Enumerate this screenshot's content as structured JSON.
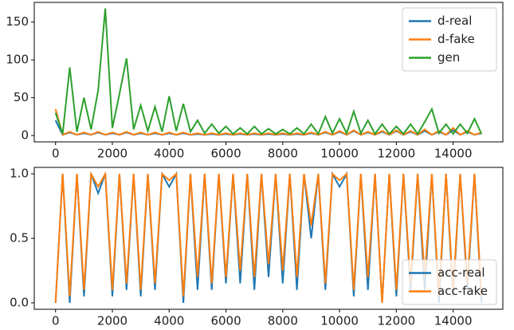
{
  "chart_data": [
    {
      "type": "line",
      "x": [
        0,
        250,
        500,
        750,
        1000,
        1250,
        1500,
        1750,
        2000,
        2250,
        2500,
        2750,
        3000,
        3250,
        3500,
        3750,
        4000,
        4250,
        4500,
        4750,
        5000,
        5250,
        5500,
        5750,
        6000,
        6250,
        6500,
        6750,
        7000,
        7250,
        7500,
        7750,
        8000,
        8250,
        8500,
        8750,
        9000,
        9250,
        9500,
        9750,
        10000,
        10250,
        10500,
        10750,
        11000,
        11250,
        11500,
        11750,
        12000,
        12250,
        12500,
        12750,
        13000,
        13250,
        13500,
        13750,
        14000,
        14250,
        14500,
        14750,
        15000
      ],
      "series": [
        {
          "name": "d-real",
          "color": "#1f77b4",
          "values": [
            20,
            1,
            4,
            1,
            3,
            1,
            4,
            1,
            3,
            1,
            4,
            1,
            3,
            1,
            3,
            1,
            3,
            1,
            3,
            1,
            2,
            1,
            2,
            1,
            2,
            1,
            2,
            1,
            2,
            1,
            2,
            1,
            2,
            1,
            2,
            1,
            3,
            1,
            4,
            1,
            5,
            1,
            6,
            1,
            4,
            1,
            5,
            1,
            6,
            1,
            5,
            1,
            6,
            1,
            5,
            1,
            7,
            1,
            5,
            1,
            3
          ]
        },
        {
          "name": "d-fake",
          "color": "#ff7f0e",
          "values": [
            35,
            1,
            5,
            1,
            4,
            1,
            5,
            1,
            4,
            1,
            5,
            1,
            4,
            1,
            4,
            1,
            4,
            1,
            4,
            1,
            3,
            1,
            3,
            1,
            3,
            1,
            3,
            1,
            3,
            1,
            3,
            1,
            3,
            1,
            3,
            1,
            4,
            1,
            5,
            1,
            6,
            1,
            7,
            1,
            5,
            1,
            6,
            1,
            7,
            1,
            6,
            1,
            8,
            1,
            6,
            1,
            10,
            1,
            6,
            1,
            4
          ]
        },
        {
          "name": "gen",
          "color": "#2ca02c",
          "values": [
            30,
            2,
            90,
            5,
            50,
            8,
            60,
            168,
            10,
            55,
            102,
            8,
            40,
            6,
            38,
            5,
            52,
            6,
            42,
            5,
            20,
            3,
            15,
            3,
            12,
            2,
            10,
            2,
            12,
            2,
            9,
            2,
            8,
            2,
            10,
            2,
            15,
            2,
            25,
            3,
            22,
            3,
            32,
            3,
            20,
            2,
            15,
            2,
            12,
            2,
            15,
            2,
            18,
            35,
            3,
            15,
            2,
            15,
            3,
            22,
            2
          ]
        }
      ],
      "xlim": [
        -750,
        15750
      ],
      "xticks": [
        0,
        2000,
        4000,
        6000,
        8000,
        10000,
        12000,
        14000
      ],
      "ylim": [
        -8.4,
        176
      ],
      "yticks": [
        0,
        50,
        100,
        150
      ],
      "legend": "upper right"
    },
    {
      "type": "line",
      "x": [
        0,
        250,
        500,
        750,
        1000,
        1250,
        1500,
        1750,
        2000,
        2250,
        2500,
        2750,
        3000,
        3250,
        3500,
        3750,
        4000,
        4250,
        4500,
        4750,
        5000,
        5250,
        5500,
        5750,
        6000,
        6250,
        6500,
        6750,
        7000,
        7250,
        7500,
        7750,
        8000,
        8250,
        8500,
        8750,
        9000,
        9250,
        9500,
        9750,
        10000,
        10250,
        10500,
        10750,
        11000,
        11250,
        11500,
        11750,
        12000,
        12250,
        12500,
        12750,
        13000,
        13250,
        13500,
        13750,
        14000,
        14250,
        14500,
        14750,
        15000
      ],
      "series": [
        {
          "name": "acc-real",
          "color": "#1f77b4",
          "values": [
            0,
            1,
            0,
            1,
            0.05,
            1,
            0.85,
            1,
            0.05,
            1,
            0.1,
            1,
            0.05,
            1,
            0.1,
            1,
            0.9,
            1,
            0,
            1,
            0.1,
            1,
            0.1,
            1,
            0.15,
            1,
            0.15,
            1,
            0.1,
            1,
            0.2,
            1,
            0.15,
            1,
            0.1,
            1,
            0.5,
            1,
            0.1,
            1,
            0.9,
            1,
            0.05,
            1,
            0.1,
            1,
            0,
            1,
            0.05,
            1,
            0.1,
            1,
            0.1,
            1,
            0,
            1,
            0.05,
            1,
            0.1,
            1,
            0
          ]
        },
        {
          "name": "acc-fake",
          "color": "#ff7f0e",
          "values": [
            0,
            1,
            0.05,
            1,
            0.1,
            1,
            0.9,
            1,
            0.1,
            1,
            0.15,
            1,
            0.1,
            1,
            0.15,
            1,
            0.95,
            1,
            0.05,
            1,
            0.2,
            1,
            0.15,
            1,
            0.2,
            1,
            0.25,
            1,
            0.2,
            1,
            0.3,
            1,
            0.25,
            1,
            0.2,
            1,
            0.6,
            1,
            0.15,
            1,
            0.95,
            1,
            0.1,
            1,
            0.2,
            1,
            0,
            1,
            0.1,
            1,
            0.15,
            1,
            0.2,
            1,
            0.05,
            1,
            0.1,
            1,
            0.15,
            1,
            0.05
          ]
        }
      ],
      "xlim": [
        -750,
        15750
      ],
      "xticks": [
        0,
        2000,
        4000,
        6000,
        8000,
        10000,
        12000,
        14000
      ],
      "ylim": [
        -0.05,
        1.05
      ],
      "yticks": [
        {
          "value": 0,
          "label": "0.0"
        },
        {
          "value": 0.5,
          "label": "0.5"
        },
        {
          "value": 1,
          "label": "1.0"
        }
      ],
      "legend": "lower right"
    }
  ]
}
